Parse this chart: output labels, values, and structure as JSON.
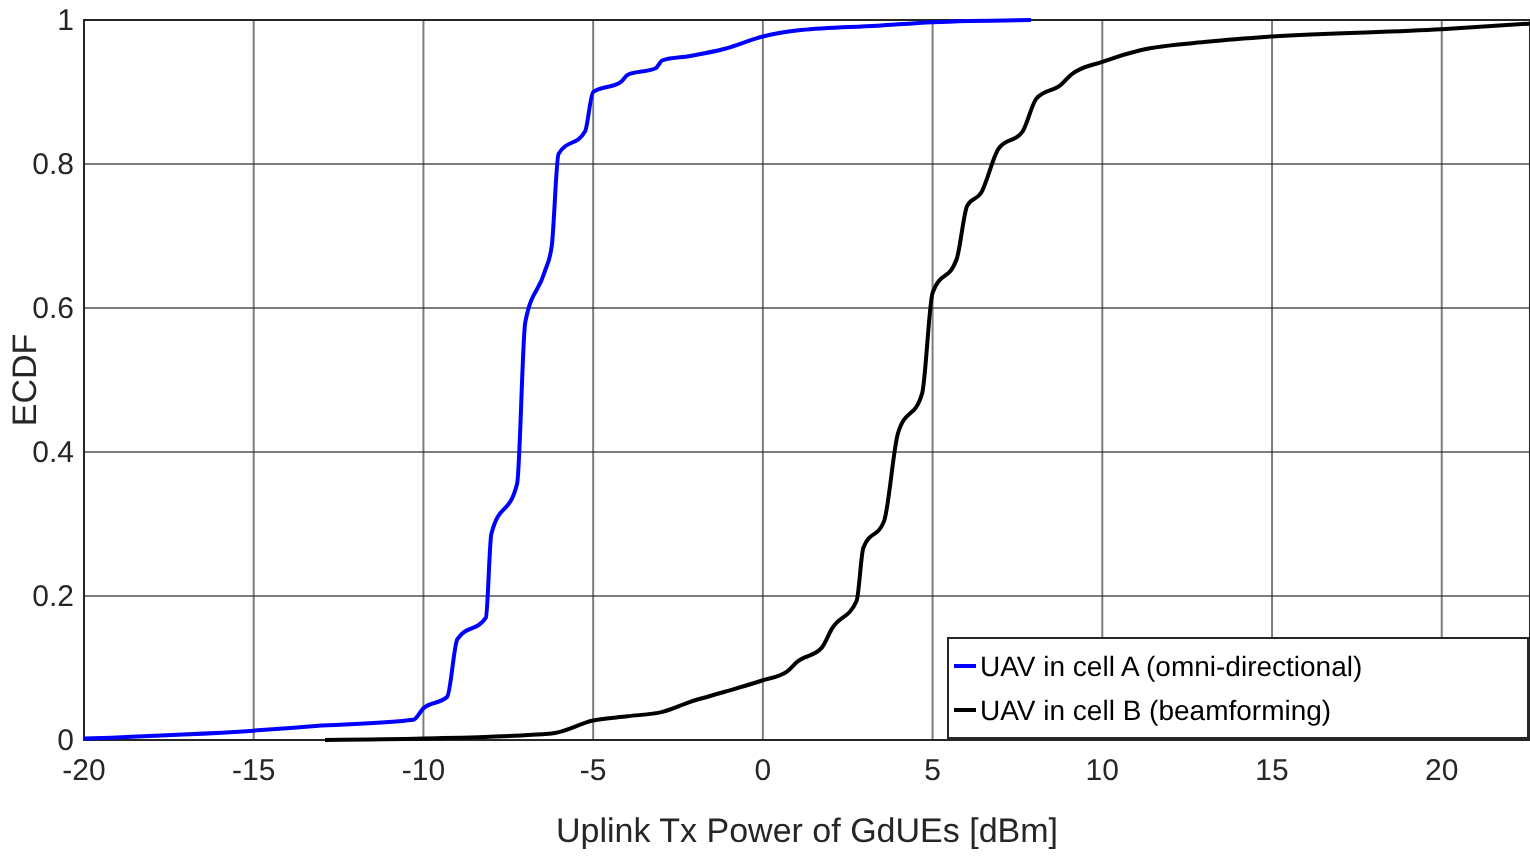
{
  "chart_data": {
    "type": "line",
    "xlabel": "Uplink Tx Power of GdUEs [dBm]",
    "ylabel": "ECDF",
    "xlim": [
      -20,
      22.6
    ],
    "ylim": [
      0,
      1
    ],
    "xticks": [
      -20,
      -15,
      -10,
      -5,
      0,
      5,
      10,
      15,
      20
    ],
    "yticks": [
      0,
      0.2,
      0.4,
      0.6,
      0.8,
      1
    ],
    "grid": true,
    "legend": "bottom right",
    "line_style": "solid",
    "series": [
      {
        "name": "UAV in cell A (omni-directional)",
        "color": "#0000ff",
        "x": [
          -20,
          -15,
          -13,
          -10.3,
          -10,
          -9.3,
          -9,
          -8.16,
          -8.0,
          -7.24,
          -7.0,
          -6.43,
          -6.22,
          -6.02,
          -5.24,
          -5,
          -4.18,
          -3.98,
          -3.16,
          -2.96,
          -2.14,
          -1.12,
          0,
          1.12,
          3.37,
          5,
          7.9
        ],
        "values": [
          0.002,
          0.013,
          0.02,
          0.028,
          0.044,
          0.06,
          0.14,
          0.17,
          0.286,
          0.356,
          0.58,
          0.65,
          0.686,
          0.814,
          0.845,
          0.9,
          0.914,
          0.924,
          0.933,
          0.944,
          0.95,
          0.96,
          0.977,
          0.986,
          0.992,
          0.997,
          1
        ]
      },
      {
        "name": "UAV in cell B (beamforming)",
        "color": "#000000",
        "x": [
          -12.9,
          -10,
          -6.22,
          -5,
          -3.98,
          -2.96,
          -2.14,
          -1.12,
          0,
          0.71,
          1.02,
          1.73,
          2.04,
          2.76,
          2.96,
          3.57,
          3.98,
          4.69,
          5,
          5.71,
          6.02,
          6.43,
          6.94,
          7.65,
          8.06,
          8.78,
          9.08,
          10,
          11.12,
          13.16,
          15,
          20,
          22.6
        ],
        "values": [
          0,
          0.002,
          0.009,
          0.027,
          0.033,
          0.039,
          0.053,
          0.067,
          0.083,
          0.095,
          0.109,
          0.128,
          0.155,
          0.193,
          0.267,
          0.304,
          0.426,
          0.481,
          0.621,
          0.668,
          0.742,
          0.76,
          0.821,
          0.845,
          0.891,
          0.91,
          0.924,
          0.942,
          0.958,
          0.97,
          0.977,
          0.987,
          0.995
        ]
      }
    ]
  }
}
